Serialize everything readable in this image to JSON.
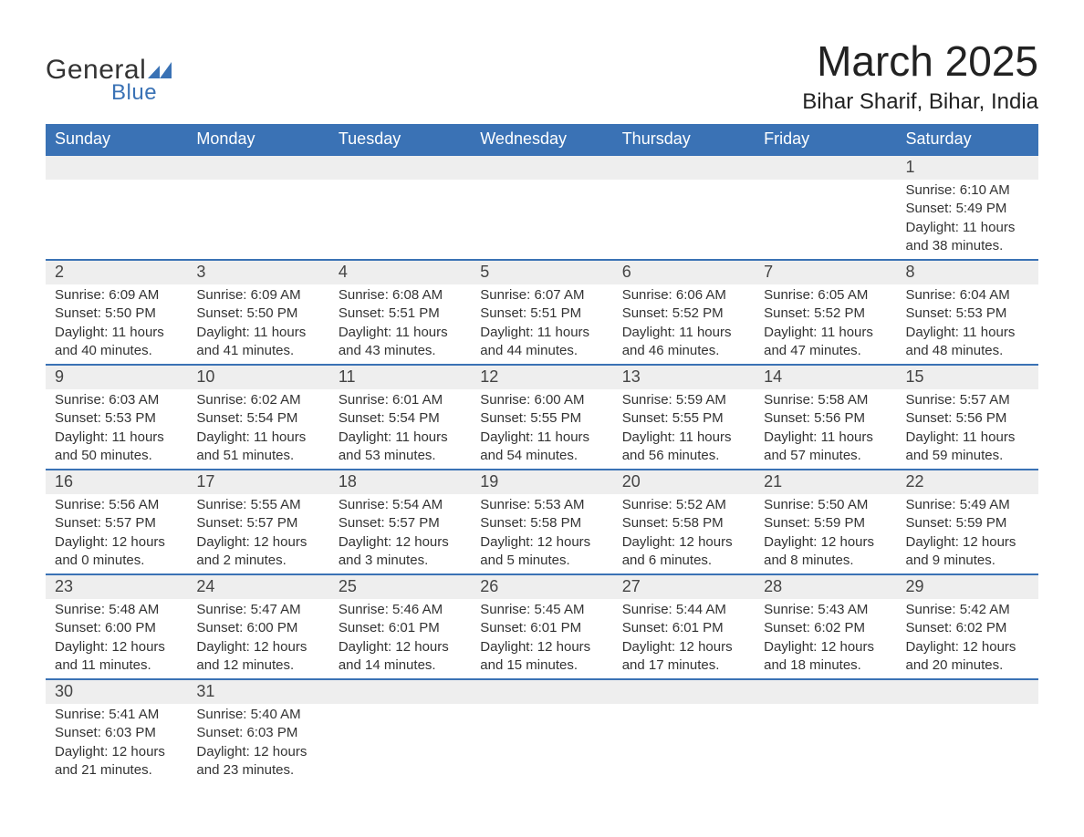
{
  "brand": {
    "word1": "General",
    "word2": "Blue",
    "mark_color": "#3a72b5",
    "text_color": "#333333"
  },
  "header": {
    "title": "March 2025",
    "subtitle": "Bihar Sharif, Bihar, India"
  },
  "colors": {
    "header_bg": "#3a72b5",
    "header_text": "#ffffff",
    "daynum_bg": "#eeeeee",
    "body_text": "#333333",
    "row_border": "#3a72b5"
  },
  "weekdays": [
    "Sunday",
    "Monday",
    "Tuesday",
    "Wednesday",
    "Thursday",
    "Friday",
    "Saturday"
  ],
  "weeks": [
    [
      null,
      null,
      null,
      null,
      null,
      null,
      {
        "day": "1",
        "sunrise": "Sunrise: 6:10 AM",
        "sunset": "Sunset: 5:49 PM",
        "dl1": "Daylight: 11 hours",
        "dl2": "and 38 minutes."
      }
    ],
    [
      {
        "day": "2",
        "sunrise": "Sunrise: 6:09 AM",
        "sunset": "Sunset: 5:50 PM",
        "dl1": "Daylight: 11 hours",
        "dl2": "and 40 minutes."
      },
      {
        "day": "3",
        "sunrise": "Sunrise: 6:09 AM",
        "sunset": "Sunset: 5:50 PM",
        "dl1": "Daylight: 11 hours",
        "dl2": "and 41 minutes."
      },
      {
        "day": "4",
        "sunrise": "Sunrise: 6:08 AM",
        "sunset": "Sunset: 5:51 PM",
        "dl1": "Daylight: 11 hours",
        "dl2": "and 43 minutes."
      },
      {
        "day": "5",
        "sunrise": "Sunrise: 6:07 AM",
        "sunset": "Sunset: 5:51 PM",
        "dl1": "Daylight: 11 hours",
        "dl2": "and 44 minutes."
      },
      {
        "day": "6",
        "sunrise": "Sunrise: 6:06 AM",
        "sunset": "Sunset: 5:52 PM",
        "dl1": "Daylight: 11 hours",
        "dl2": "and 46 minutes."
      },
      {
        "day": "7",
        "sunrise": "Sunrise: 6:05 AM",
        "sunset": "Sunset: 5:52 PM",
        "dl1": "Daylight: 11 hours",
        "dl2": "and 47 minutes."
      },
      {
        "day": "8",
        "sunrise": "Sunrise: 6:04 AM",
        "sunset": "Sunset: 5:53 PM",
        "dl1": "Daylight: 11 hours",
        "dl2": "and 48 minutes."
      }
    ],
    [
      {
        "day": "9",
        "sunrise": "Sunrise: 6:03 AM",
        "sunset": "Sunset: 5:53 PM",
        "dl1": "Daylight: 11 hours",
        "dl2": "and 50 minutes."
      },
      {
        "day": "10",
        "sunrise": "Sunrise: 6:02 AM",
        "sunset": "Sunset: 5:54 PM",
        "dl1": "Daylight: 11 hours",
        "dl2": "and 51 minutes."
      },
      {
        "day": "11",
        "sunrise": "Sunrise: 6:01 AM",
        "sunset": "Sunset: 5:54 PM",
        "dl1": "Daylight: 11 hours",
        "dl2": "and 53 minutes."
      },
      {
        "day": "12",
        "sunrise": "Sunrise: 6:00 AM",
        "sunset": "Sunset: 5:55 PM",
        "dl1": "Daylight: 11 hours",
        "dl2": "and 54 minutes."
      },
      {
        "day": "13",
        "sunrise": "Sunrise: 5:59 AM",
        "sunset": "Sunset: 5:55 PM",
        "dl1": "Daylight: 11 hours",
        "dl2": "and 56 minutes."
      },
      {
        "day": "14",
        "sunrise": "Sunrise: 5:58 AM",
        "sunset": "Sunset: 5:56 PM",
        "dl1": "Daylight: 11 hours",
        "dl2": "and 57 minutes."
      },
      {
        "day": "15",
        "sunrise": "Sunrise: 5:57 AM",
        "sunset": "Sunset: 5:56 PM",
        "dl1": "Daylight: 11 hours",
        "dl2": "and 59 minutes."
      }
    ],
    [
      {
        "day": "16",
        "sunrise": "Sunrise: 5:56 AM",
        "sunset": "Sunset: 5:57 PM",
        "dl1": "Daylight: 12 hours",
        "dl2": "and 0 minutes."
      },
      {
        "day": "17",
        "sunrise": "Sunrise: 5:55 AM",
        "sunset": "Sunset: 5:57 PM",
        "dl1": "Daylight: 12 hours",
        "dl2": "and 2 minutes."
      },
      {
        "day": "18",
        "sunrise": "Sunrise: 5:54 AM",
        "sunset": "Sunset: 5:57 PM",
        "dl1": "Daylight: 12 hours",
        "dl2": "and 3 minutes."
      },
      {
        "day": "19",
        "sunrise": "Sunrise: 5:53 AM",
        "sunset": "Sunset: 5:58 PM",
        "dl1": "Daylight: 12 hours",
        "dl2": "and 5 minutes."
      },
      {
        "day": "20",
        "sunrise": "Sunrise: 5:52 AM",
        "sunset": "Sunset: 5:58 PM",
        "dl1": "Daylight: 12 hours",
        "dl2": "and 6 minutes."
      },
      {
        "day": "21",
        "sunrise": "Sunrise: 5:50 AM",
        "sunset": "Sunset: 5:59 PM",
        "dl1": "Daylight: 12 hours",
        "dl2": "and 8 minutes."
      },
      {
        "day": "22",
        "sunrise": "Sunrise: 5:49 AM",
        "sunset": "Sunset: 5:59 PM",
        "dl1": "Daylight: 12 hours",
        "dl2": "and 9 minutes."
      }
    ],
    [
      {
        "day": "23",
        "sunrise": "Sunrise: 5:48 AM",
        "sunset": "Sunset: 6:00 PM",
        "dl1": "Daylight: 12 hours",
        "dl2": "and 11 minutes."
      },
      {
        "day": "24",
        "sunrise": "Sunrise: 5:47 AM",
        "sunset": "Sunset: 6:00 PM",
        "dl1": "Daylight: 12 hours",
        "dl2": "and 12 minutes."
      },
      {
        "day": "25",
        "sunrise": "Sunrise: 5:46 AM",
        "sunset": "Sunset: 6:01 PM",
        "dl1": "Daylight: 12 hours",
        "dl2": "and 14 minutes."
      },
      {
        "day": "26",
        "sunrise": "Sunrise: 5:45 AM",
        "sunset": "Sunset: 6:01 PM",
        "dl1": "Daylight: 12 hours",
        "dl2": "and 15 minutes."
      },
      {
        "day": "27",
        "sunrise": "Sunrise: 5:44 AM",
        "sunset": "Sunset: 6:01 PM",
        "dl1": "Daylight: 12 hours",
        "dl2": "and 17 minutes."
      },
      {
        "day": "28",
        "sunrise": "Sunrise: 5:43 AM",
        "sunset": "Sunset: 6:02 PM",
        "dl1": "Daylight: 12 hours",
        "dl2": "and 18 minutes."
      },
      {
        "day": "29",
        "sunrise": "Sunrise: 5:42 AM",
        "sunset": "Sunset: 6:02 PM",
        "dl1": "Daylight: 12 hours",
        "dl2": "and 20 minutes."
      }
    ],
    [
      {
        "day": "30",
        "sunrise": "Sunrise: 5:41 AM",
        "sunset": "Sunset: 6:03 PM",
        "dl1": "Daylight: 12 hours",
        "dl2": "and 21 minutes."
      },
      {
        "day": "31",
        "sunrise": "Sunrise: 5:40 AM",
        "sunset": "Sunset: 6:03 PM",
        "dl1": "Daylight: 12 hours",
        "dl2": "and 23 minutes."
      },
      null,
      null,
      null,
      null,
      null
    ]
  ]
}
